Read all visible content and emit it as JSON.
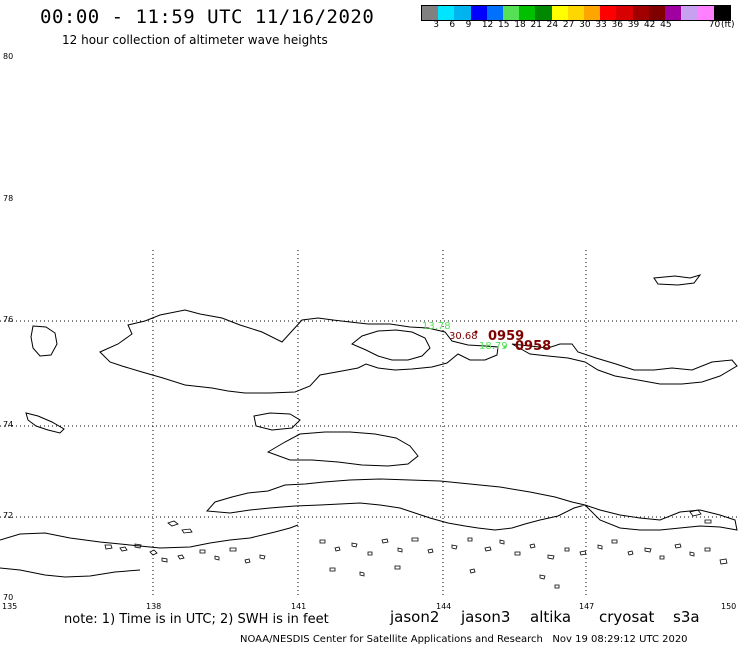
{
  "header": {
    "title": "00:00 - 11:59 UTC 11/16/2020",
    "subtitle": "12 hour collection of altimeter wave heights"
  },
  "legend": {
    "unit_label": "(ft)",
    "colors": [
      "#808080",
      "#00e5ff",
      "#00b4f0",
      "#0000ff",
      "#0070ff",
      "#55e055",
      "#00c000",
      "#008800",
      "#ffff00",
      "#ffd700",
      "#ffa500",
      "#ff0000",
      "#d80000",
      "#a00000",
      "#800000",
      "#a000a0",
      "#c8a0f0",
      "#ff80ff",
      "#000000"
    ],
    "labels": [
      "3",
      "6",
      "9",
      "12",
      "15",
      "18",
      "21",
      "24",
      "27",
      "30",
      "33",
      "36",
      "39",
      "42",
      "45",
      "70"
    ]
  },
  "axes": {
    "y_labels": [
      "80",
      "78",
      "76",
      "74",
      "72",
      "70"
    ],
    "x_labels": [
      "135",
      "138",
      "141",
      "144",
      "147",
      "150"
    ]
  },
  "observations": [
    {
      "text": "13.78",
      "color": "#55e055"
    },
    {
      "text": "30.68",
      "color": "#800000"
    },
    {
      "text": "0959",
      "color": "#800000"
    },
    {
      "text": "18.79",
      "color": "#55e055"
    },
    {
      "text": "0958",
      "color": "#800000"
    }
  ],
  "footer": {
    "note": "note: 1) Time is in UTC; 2) SWH is in feet",
    "satellites": [
      {
        "name": "jason2",
        "color": "#0000cc"
      },
      {
        "name": "jason3",
        "color": "#00a000"
      },
      {
        "name": "altika",
        "color": "#ff9900"
      },
      {
        "name": "cryosat",
        "color": "#ff0000"
      },
      {
        "name": "s3a",
        "color": "#cc0000"
      }
    ],
    "credit": "NOAA/NESDIS Center for Satellite Applications and Research",
    "timestamp": "Nov 19 08:29:12 UTC 2020"
  }
}
